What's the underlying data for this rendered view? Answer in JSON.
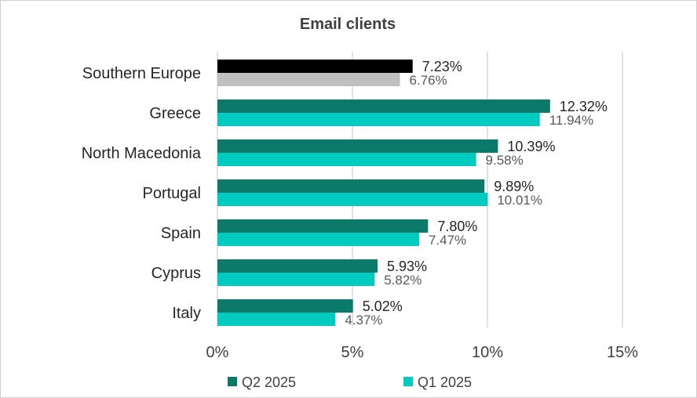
{
  "chart_data": {
    "type": "bar",
    "orientation": "horizontal",
    "title": "Email clients",
    "categories": [
      "Southern Europe",
      "Greece",
      "North Macedonia",
      "Portugal",
      "Spain",
      "Cyprus",
      "Italy"
    ],
    "series": [
      {
        "name": "Q2 2025",
        "values": [
          7.23,
          12.32,
          10.39,
          9.89,
          7.8,
          5.93,
          5.02
        ],
        "labels": [
          "7.23%",
          "12.32%",
          "10.39%",
          "9.89%",
          "7.80%",
          "5.93%",
          "5.02%"
        ]
      },
      {
        "name": "Q1 2025",
        "values": [
          6.76,
          11.94,
          9.58,
          10.01,
          7.47,
          5.82,
          4.37
        ],
        "labels": [
          "6.76%",
          "11.94%",
          "9.58%",
          "10.01%",
          "7.47%",
          "5.82%",
          "4.37%"
        ]
      }
    ],
    "xlim": [
      0,
      15
    ],
    "xticks": [
      0,
      5,
      10,
      15
    ],
    "xtick_labels": [
      "0%",
      "5%",
      "10%",
      "15%"
    ],
    "grid": true,
    "legend_position": "bottom",
    "colors": {
      "q2": "#0b7a6a",
      "q1": "#00cbc0",
      "highlight_q2": "#000000",
      "highlight_q1": "#bfbfbf",
      "grid": "#d9d9d9"
    }
  }
}
